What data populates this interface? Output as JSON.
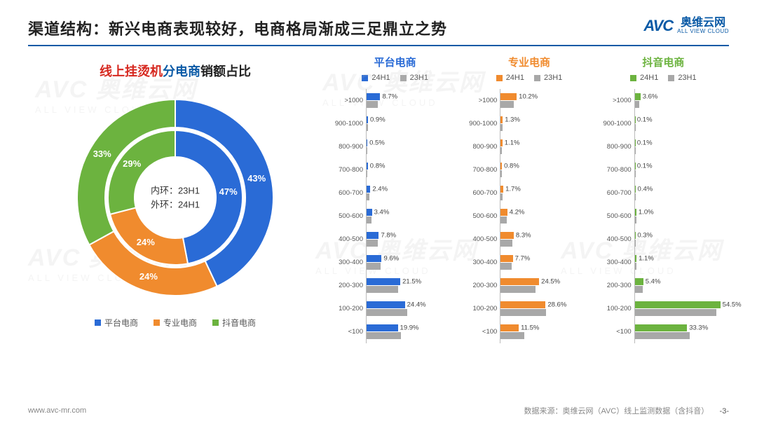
{
  "header": {
    "title": "渠道结构：新兴电商表现较好，电商格局渐成三足鼎立之势",
    "logo_mark": "AVC",
    "logo_cn": "奥维云网",
    "logo_en": "ALL VIEW CLOUD"
  },
  "donut": {
    "title_parts": {
      "p1": "线上挂烫机",
      "p1_color": "#d6281f",
      "p2": "分电商",
      "p2_color": "#0a5aa6",
      "p3": "销额占比",
      "p3_color": "#222"
    },
    "center_line1": "内环：23H1",
    "center_line2": "外环：24H1",
    "inner": {
      "label": "23H1",
      "slices": [
        {
          "name": "平台电商",
          "value": 47,
          "color": "#2a6bd6"
        },
        {
          "name": "专业电商",
          "value": 24,
          "color": "#f08b2e"
        },
        {
          "name": "抖音电商",
          "value": 29,
          "color": "#6cb33f"
        }
      ]
    },
    "outer": {
      "label": "24H1",
      "slices": [
        {
          "name": "平台电商",
          "value": 43,
          "color": "#2a6bd6"
        },
        {
          "name": "专业电商",
          "value": 24,
          "color": "#f08b2e"
        },
        {
          "name": "抖音电商",
          "value": 33,
          "color": "#6cb33f"
        }
      ]
    },
    "legend": [
      {
        "label": "平台电商",
        "color": "#2a6bd6"
      },
      {
        "label": "专业电商",
        "color": "#f08b2e"
      },
      {
        "label": "抖音电商",
        "color": "#6cb33f"
      }
    ]
  },
  "bars": {
    "categories": [
      ">1000",
      "900-1000",
      "800-900",
      "700-800",
      "600-700",
      "500-600",
      "400-500",
      "300-400",
      "200-300",
      "100-200",
      "<100"
    ],
    "xmax": 60,
    "series_24": "24H1",
    "series_23": "23H1",
    "grey": "#a8a8a8",
    "cols": [
      {
        "title": "平台电商",
        "color": "#2a6bd6",
        "v24": [
          8.7,
          0.9,
          0.5,
          0.8,
          2.4,
          3.4,
          7.8,
          9.6,
          21.5,
          24.4,
          19.9
        ],
        "v23": [
          7.0,
          0.7,
          0.4,
          0.6,
          2.0,
          3.0,
          7.0,
          9.0,
          20.0,
          26.0,
          22.0
        ],
        "show": [
          8.7,
          0.9,
          0.5,
          0.8,
          2.4,
          3.4,
          7.8,
          9.6,
          21.5,
          24.4,
          19.9
        ]
      },
      {
        "title": "专业电商",
        "color": "#f08b2e",
        "v24": [
          10.2,
          1.3,
          1.1,
          0.8,
          1.7,
          4.2,
          8.3,
          7.7,
          24.5,
          28.6,
          11.5
        ],
        "v23": [
          8.5,
          1.0,
          0.9,
          0.6,
          1.4,
          3.8,
          7.5,
          7.0,
          22.0,
          29.0,
          15.0
        ],
        "show": [
          10.2,
          1.3,
          1.1,
          0.8,
          1.7,
          4.2,
          8.3,
          7.7,
          24.5,
          28.6,
          11.5
        ]
      },
      {
        "title": "抖音电商",
        "color": "#6cb33f",
        "v24": [
          3.6,
          0.1,
          0.1,
          0.1,
          0.4,
          1.0,
          0.3,
          1.1,
          5.4,
          54.5,
          33.3
        ],
        "v23": [
          3.0,
          0.1,
          0.1,
          0.1,
          0.3,
          0.9,
          0.3,
          1.0,
          5.0,
          52.0,
          35.0
        ],
        "show": [
          3.6,
          0.1,
          0.1,
          0.1,
          0.4,
          1.0,
          0.3,
          1.1,
          5.4,
          54.5,
          33.3
        ]
      }
    ]
  },
  "footer": {
    "url": "www.avc-mr.com",
    "source": "数据来源：奥维云网（AVC）线上监测数据（含抖音）",
    "page": "-3-"
  },
  "watermark": {
    "main": "AVC 奥维云网",
    "sub": "ALL VIEW CLOUD"
  }
}
